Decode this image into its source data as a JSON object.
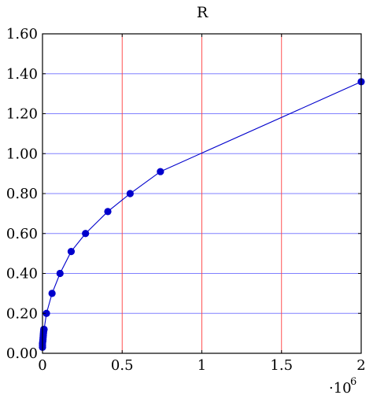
{
  "chart_data": {
    "type": "line",
    "title": "R",
    "xlabel": "",
    "ylabel": "",
    "x_scale_label": "·10",
    "x_scale_exponent": "6",
    "xlim": [
      0,
      2
    ],
    "ylim": [
      0,
      1.6
    ],
    "x_ticks": [
      0,
      0.5,
      1,
      1.5,
      2
    ],
    "x_tick_labels": [
      "0",
      "0.5",
      "1",
      "1.5",
      "2"
    ],
    "y_ticks": [
      0,
      0.2,
      0.4,
      0.6,
      0.8,
      1.0,
      1.2,
      1.4,
      1.6
    ],
    "y_tick_labels": [
      "0.00",
      "0.20",
      "0.40",
      "0.60",
      "0.80",
      "1.00",
      "1.20",
      "1.40",
      "1.60"
    ],
    "grid": {
      "vertical": true,
      "horizontal": true
    },
    "colors": {
      "series": "#0000cc",
      "hgrid": "#8080ff",
      "vgrid": "#ff4040"
    },
    "series": [
      {
        "x": [
          0.0,
          0.0,
          0.0,
          0.002,
          0.003,
          0.004,
          0.005,
          0.006,
          0.007,
          0.008,
          0.01,
          0.025,
          0.06,
          0.11,
          0.18,
          0.27,
          0.41,
          0.55,
          0.74,
          2.0
        ],
        "y": [
          0.03,
          0.04,
          0.05,
          0.06,
          0.07,
          0.08,
          0.09,
          0.1,
          0.11,
          0.12,
          0.12,
          0.2,
          0.3,
          0.4,
          0.51,
          0.6,
          0.71,
          0.8,
          0.91,
          1.36
        ]
      }
    ]
  }
}
